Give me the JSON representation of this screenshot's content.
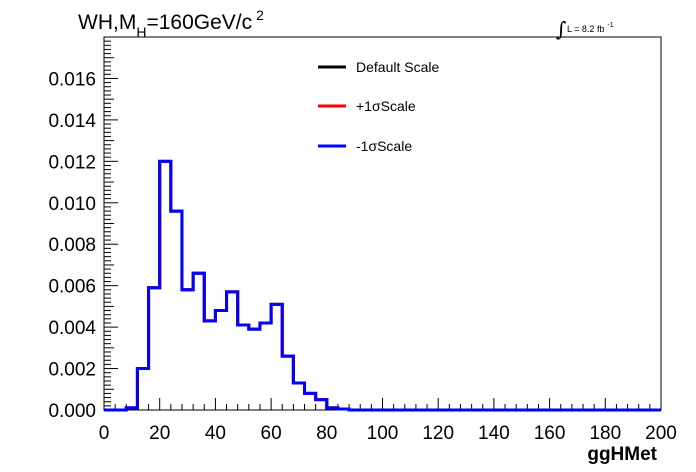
{
  "chart_data": {
    "type": "histogram",
    "title": {
      "prefix": "WH,M",
      "subscript": "H",
      "middle": "=160GeV/c",
      "superscript": "2"
    },
    "luminosity": {
      "integral_symbol": "∫",
      "text": "L = 8.2 fb",
      "superscript": "-1"
    },
    "xlabel": "ggHMet",
    "xlim": [
      0,
      200
    ],
    "ylim": [
      0,
      0.018
    ],
    "x_ticks": [
      "0",
      "20",
      "40",
      "60",
      "80",
      "100",
      "120",
      "140",
      "160",
      "180",
      "200"
    ],
    "y_ticks": [
      "0.000",
      "0.002",
      "0.004",
      "0.006",
      "0.008",
      "0.010",
      "0.012",
      "0.014",
      "0.016"
    ],
    "bin_edges": [
      0,
      4,
      8,
      12,
      16,
      20,
      24,
      28,
      32,
      36,
      40,
      44,
      48,
      52,
      56,
      60,
      64,
      68,
      72,
      76,
      80,
      84,
      88,
      92,
      96,
      100,
      104,
      108,
      112,
      116,
      120,
      124,
      128,
      132,
      136,
      140,
      144,
      148,
      152,
      156,
      160,
      164,
      168,
      172,
      176,
      180,
      184,
      188,
      192,
      196,
      200
    ],
    "series": [
      {
        "name": "Default Scale",
        "color": "#000000",
        "values": [
          0,
          0,
          0.0001,
          0.002,
          0.0059,
          0.012,
          0.0096,
          0.0058,
          0.0066,
          0.0043,
          0.0048,
          0.0057,
          0.0041,
          0.0039,
          0.0042,
          0.0051,
          0.0026,
          0.0013,
          0.0008,
          0.0005,
          0.0001,
          5e-05,
          0,
          0,
          0,
          0,
          0,
          0,
          0,
          0,
          0,
          0,
          0,
          0,
          0,
          0,
          0,
          0,
          0,
          0,
          0,
          0,
          0,
          0,
          0,
          0,
          0,
          0,
          0,
          0
        ]
      },
      {
        "name": "+1σScale",
        "color": "#ff0000",
        "values": [
          0,
          0,
          0.0001,
          0.002,
          0.0059,
          0.012,
          0.0096,
          0.0058,
          0.0066,
          0.0043,
          0.0048,
          0.0057,
          0.0041,
          0.0039,
          0.0042,
          0.0051,
          0.0026,
          0.0013,
          0.0008,
          0.0005,
          0.0001,
          5e-05,
          0,
          0,
          0,
          0,
          0,
          0,
          0,
          0,
          0,
          0,
          0,
          0,
          0,
          0,
          0,
          0,
          0,
          0,
          0,
          0,
          0,
          0,
          0,
          0,
          0,
          0,
          0,
          0
        ]
      },
      {
        "name": "-1σScale",
        "color": "#0000ff",
        "values": [
          0,
          0,
          0.0001,
          0.002,
          0.0059,
          0.012,
          0.0096,
          0.0058,
          0.0066,
          0.0043,
          0.0048,
          0.0057,
          0.0041,
          0.0039,
          0.0042,
          0.0051,
          0.0026,
          0.0013,
          0.0008,
          0.0005,
          0.0001,
          5e-05,
          0,
          0,
          0,
          0,
          0,
          0,
          0,
          0,
          0,
          0,
          0,
          0,
          0,
          0,
          0,
          0,
          0,
          0,
          0,
          0,
          0,
          0,
          0,
          0,
          0,
          0,
          0,
          0
        ]
      }
    ],
    "legend_position": "top-center",
    "grid": false
  }
}
